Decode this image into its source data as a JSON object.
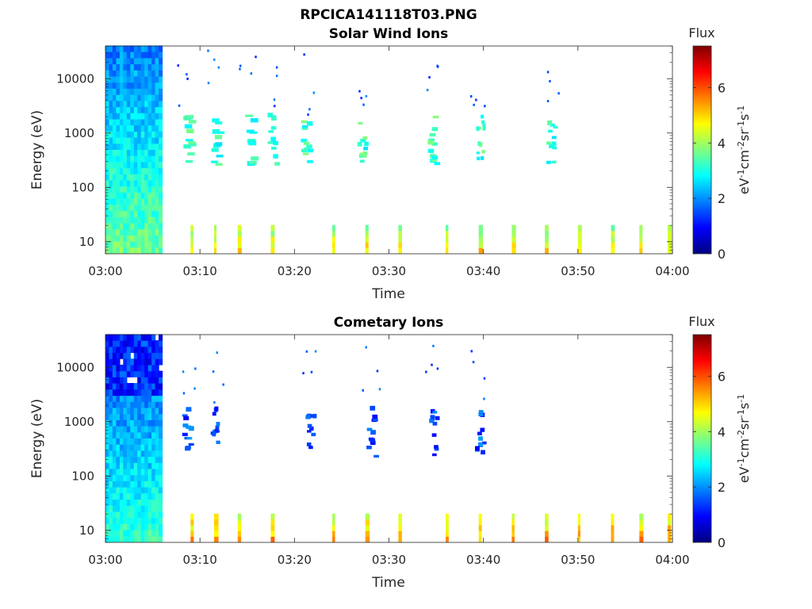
{
  "figure_title": "RPCICA141118T03.PNG",
  "colormap": [
    "#00007f",
    "#0000ff",
    "#007fff",
    "#00ffff",
    "#7fff7f",
    "#ffff00",
    "#ff7f00",
    "#ff0000",
    "#7f0000"
  ],
  "chart_data": [
    {
      "type": "heatmap",
      "title": "Solar Wind Ions",
      "xlabel": "Time",
      "ylabel": "Energy (eV)",
      "x_ticks": [
        "03:00",
        "03:10",
        "03:20",
        "03:30",
        "03:40",
        "03:50",
        "04:00"
      ],
      "x_range_minutes": [
        0,
        60
      ],
      "y_scale": "log",
      "y_ticks": [
        10,
        100,
        1000,
        10000
      ],
      "y_tick_labels": [
        "10",
        "100",
        "1000",
        "10000"
      ],
      "y_range": [
        6,
        40000
      ],
      "colorbar": {
        "title": "Flux",
        "label": "eV-1cm-2sr-1s-1",
        "ticks": [
          "0",
          "2",
          "4",
          "6"
        ],
        "range": [
          0,
          7.5
        ]
      },
      "features": [
        {
          "name": "dense-block",
          "t_start": 0,
          "t_end": 6,
          "e_low": 6,
          "e_high": 40000,
          "flux_typ": 2.6
        },
        {
          "name": "sweep-bands",
          "times": [
            8.5,
            11.5,
            15,
            17.5,
            21,
            27,
            34.5,
            39.5,
            47
          ],
          "e_center": 700,
          "flux_typ": 3.2
        },
        {
          "name": "low-energy-bursts",
          "times": [
            9,
            11.5,
            14,
            17.5,
            24,
            27.5,
            31,
            36,
            39.5,
            43,
            46.5,
            50,
            53.5,
            56.5,
            59.5
          ],
          "e_low": 6,
          "e_high": 20,
          "flux_typ": 4.5
        }
      ]
    },
    {
      "type": "heatmap",
      "title": "Cometary Ions",
      "xlabel": "Time",
      "ylabel": "Energy (eV)",
      "x_ticks": [
        "03:00",
        "03:10",
        "03:20",
        "03:30",
        "03:40",
        "03:50",
        "04:00"
      ],
      "x_range_minutes": [
        0,
        60
      ],
      "y_scale": "log",
      "y_ticks": [
        10,
        100,
        1000,
        10000
      ],
      "y_tick_labels": [
        "10",
        "100",
        "1000",
        "10000"
      ],
      "y_range": [
        6,
        40000
      ],
      "colorbar": {
        "title": "Flux",
        "label": "eV-1cm-2sr-1s-1",
        "ticks": [
          "0",
          "2",
          "4",
          "6"
        ],
        "range": [
          0,
          7.5
        ]
      },
      "features": [
        {
          "name": "dense-block",
          "t_start": 0,
          "t_end": 6,
          "e_low": 6,
          "e_high": 40000,
          "flux_typ": 2.2
        },
        {
          "name": "sweep-bands",
          "times": [
            8.5,
            11.5,
            21.5,
            28,
            34.5,
            39.5
          ],
          "e_center": 600,
          "flux_typ": 1.5
        },
        {
          "name": "low-energy-bursts",
          "times": [
            9,
            11.5,
            14,
            17.5,
            24,
            27.5,
            31,
            36,
            39.5,
            43,
            46.5,
            50,
            53.5,
            56.5,
            59.5
          ],
          "e_low": 6,
          "e_high": 20,
          "flux_typ": 5.0
        }
      ]
    }
  ]
}
